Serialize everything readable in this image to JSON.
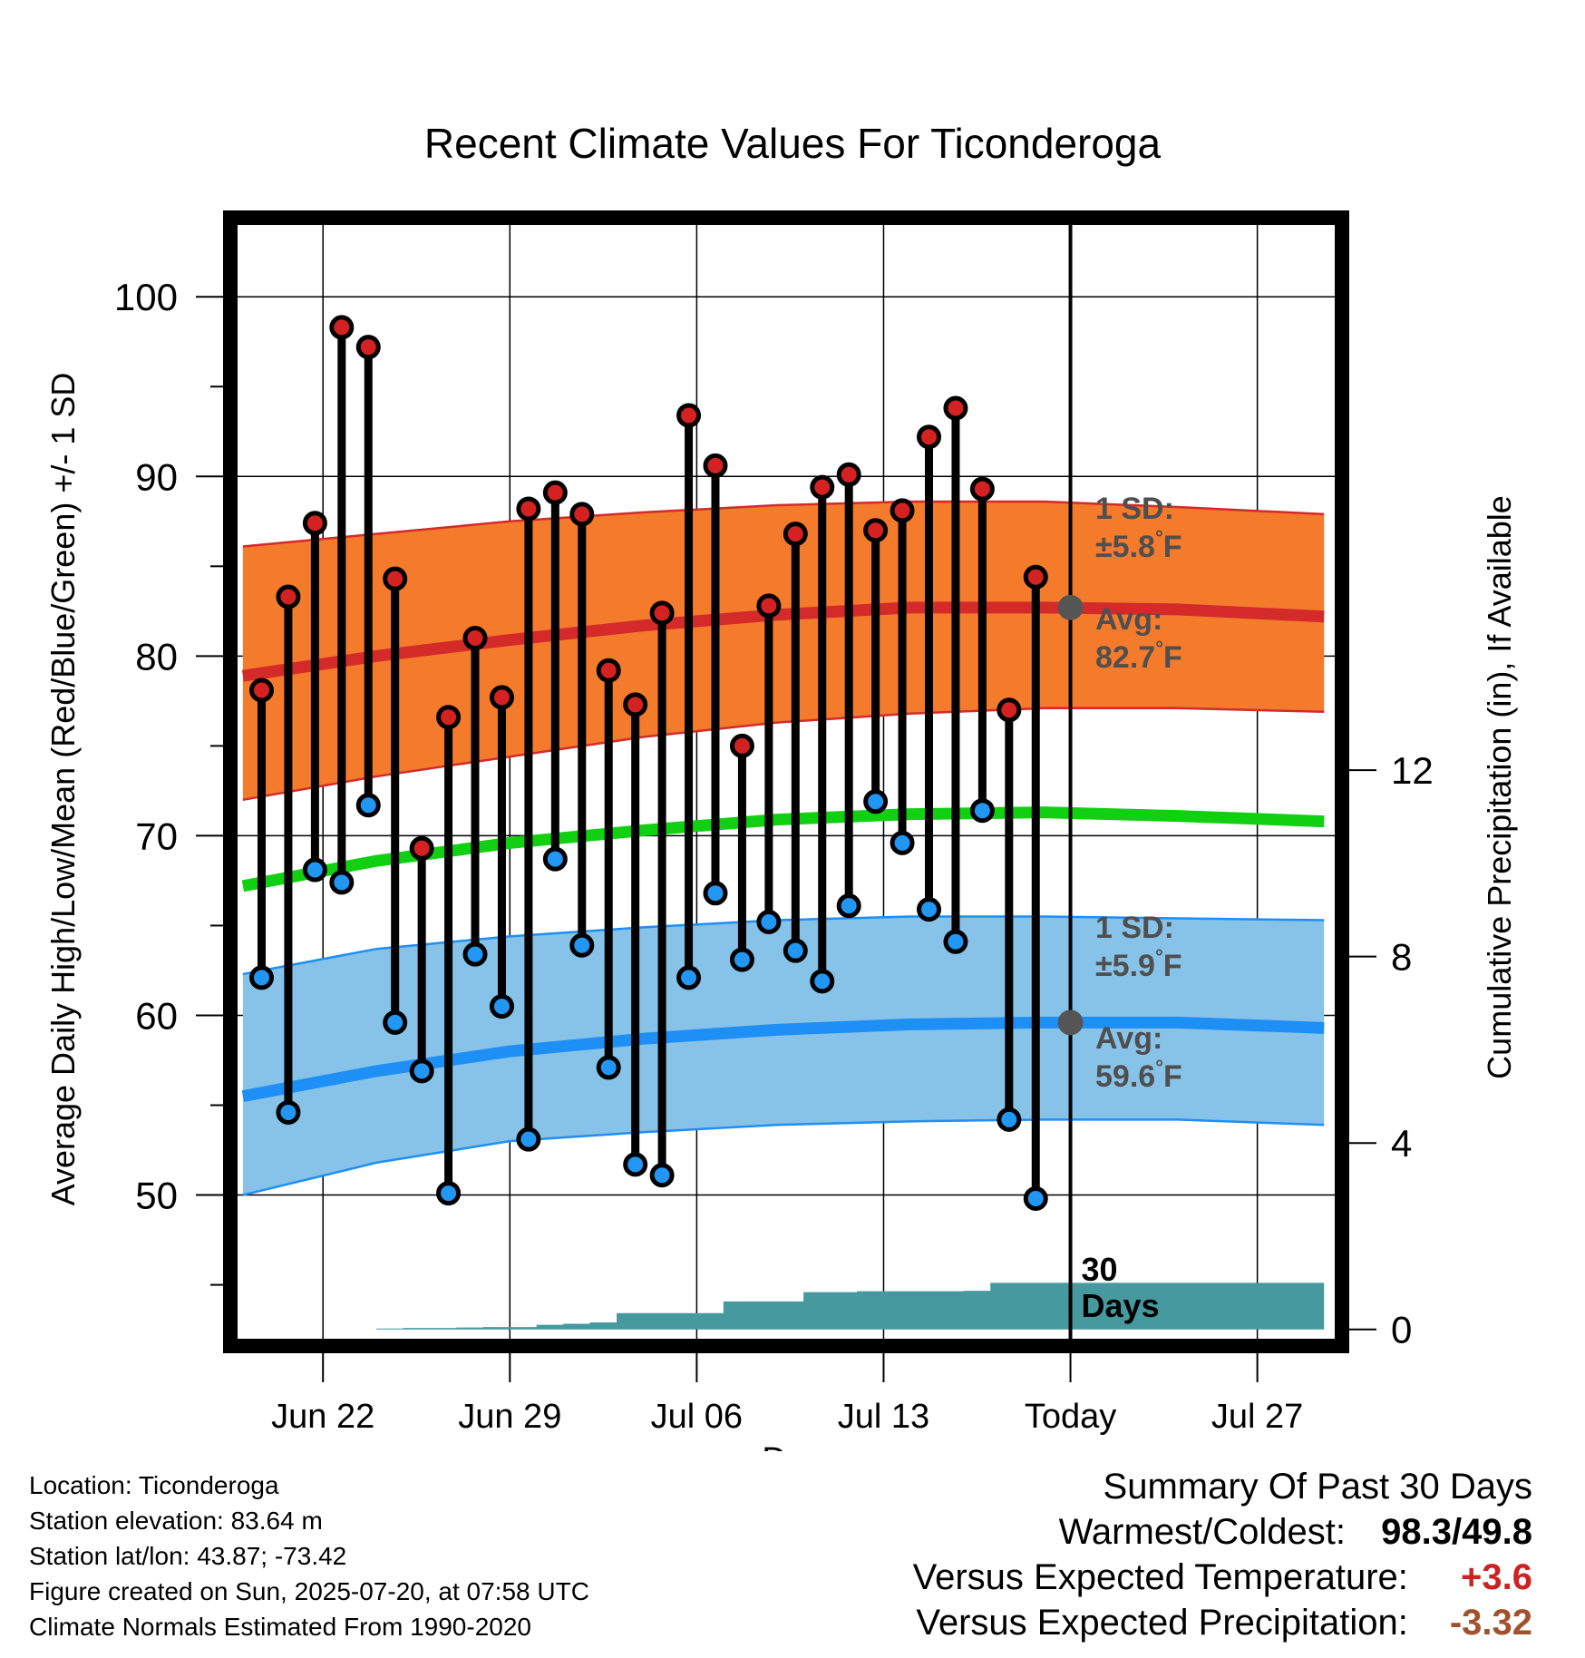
{
  "chart_data": {
    "type": "line",
    "title": "Recent Climate Values For Ticonderoga",
    "xlabel": "Day",
    "ylabel": "Average Daily High/Low/Mean (Red/Blue/Green) +/- 1 SD",
    "y2label": "Cumulative Precipitation (in), If Available",
    "x_ticks": [
      {
        "day": 3,
        "label": "Jun 22"
      },
      {
        "day": 10,
        "label": "Jun 29"
      },
      {
        "day": 17,
        "label": "Jul 06"
      },
      {
        "day": 24,
        "label": "Jul 13"
      },
      {
        "day": 31,
        "label": "Today"
      },
      {
        "day": 38,
        "label": "Jul 27"
      }
    ],
    "x_range": [
      -0.2,
      40.9
    ],
    "ylim": [
      42,
      104
    ],
    "y_ticks": [
      50,
      60,
      70,
      80,
      90,
      100
    ],
    "y2lim": [
      -0.2,
      23.7
    ],
    "y2_ticks": [
      0,
      4,
      8,
      12
    ],
    "today_day": 31,
    "today_label": [
      "30",
      "Days"
    ],
    "normal_high": {
      "x": [
        0,
        5,
        10,
        15,
        20,
        25,
        30,
        35,
        40.5
      ],
      "mean": [
        78.9,
        80.0,
        80.9,
        81.7,
        82.3,
        82.7,
        82.7,
        82.6,
        82.2
      ],
      "upper": [
        86.1,
        86.8,
        87.5,
        88.0,
        88.4,
        88.6,
        88.6,
        88.3,
        87.9
      ],
      "lower": [
        72.0,
        73.3,
        74.4,
        75.5,
        76.3,
        76.8,
        77.1,
        77.1,
        76.9
      ]
    },
    "normal_low": {
      "x": [
        0,
        5,
        10,
        15,
        20,
        25,
        30,
        35,
        40.5
      ],
      "mean": [
        55.5,
        56.9,
        58.0,
        58.7,
        59.2,
        59.5,
        59.6,
        59.6,
        59.3
      ],
      "upper": [
        62.3,
        63.7,
        64.4,
        64.9,
        65.3,
        65.5,
        65.5,
        65.4,
        65.3
      ],
      "lower": [
        50.0,
        51.8,
        53.0,
        53.5,
        53.9,
        54.1,
        54.2,
        54.2,
        53.9
      ]
    },
    "normal_mean": {
      "x": [
        0,
        5,
        10,
        15,
        20,
        25,
        30,
        35,
        40.5
      ],
      "values": [
        67.2,
        68.6,
        69.6,
        70.3,
        70.9,
        71.2,
        71.3,
        71.1,
        70.8
      ]
    },
    "observed": {
      "day": [
        0.7,
        1.7,
        2.7,
        3.7,
        4.7,
        5.7,
        6.7,
        7.7,
        8.7,
        9.7,
        10.7,
        11.7,
        12.7,
        13.7,
        14.7,
        15.7,
        16.7,
        17.7,
        18.7,
        19.7,
        20.7,
        21.7,
        22.7,
        23.7,
        24.7,
        25.7,
        26.7,
        27.7,
        28.7,
        29.7
      ],
      "high": [
        78.1,
        83.3,
        87.4,
        98.3,
        97.2,
        84.3,
        69.3,
        76.6,
        81.0,
        77.7,
        88.2,
        89.1,
        87.9,
        79.2,
        77.3,
        82.4,
        93.4,
        90.6,
        75.0,
        82.8,
        86.8,
        89.4,
        90.1,
        87.0,
        88.1,
        92.2,
        93.8,
        89.3,
        77.0,
        84.4
      ],
      "low": [
        62.1,
        54.6,
        68.1,
        67.4,
        71.7,
        59.6,
        56.9,
        50.1,
        63.4,
        60.5,
        53.1,
        68.7,
        63.9,
        57.1,
        51.7,
        51.1,
        62.1,
        66.8,
        63.1,
        65.2,
        63.6,
        61.9,
        66.1,
        71.9,
        69.6,
        65.9,
        64.1,
        71.4,
        54.2,
        49.8
      ]
    },
    "precip_cumulative": {
      "day": [
        0,
        1,
        2,
        3,
        4,
        5,
        6,
        7,
        8,
        9,
        10,
        11,
        12,
        13,
        14,
        15,
        16,
        17,
        18,
        19,
        20,
        21,
        22,
        23,
        24,
        25,
        26,
        27,
        28,
        29,
        30,
        31,
        32,
        33,
        34,
        35,
        36,
        37,
        38,
        39,
        40.5
      ],
      "values": [
        0,
        0,
        0,
        0,
        0,
        0.02,
        0.03,
        0.03,
        0.04,
        0.05,
        0.05,
        0.1,
        0.12,
        0.15,
        0.35,
        0.35,
        0.35,
        0.35,
        0.6,
        0.6,
        0.6,
        0.8,
        0.8,
        0.82,
        0.82,
        0.82,
        0.82,
        0.83,
        1.0,
        1.0,
        1.0,
        1.0,
        1.0,
        1.0,
        1.0,
        1.0,
        1.0,
        1.0,
        1.0,
        1.0,
        1.0
      ]
    },
    "annotations": {
      "high_sd": {
        "lines": [
          "1 SD:",
          "±5.8°F"
        ]
      },
      "high_avg": {
        "lines": [
          "Avg:",
          "82.7°F"
        ],
        "value": 82.7
      },
      "low_sd": {
        "lines": [
          "1 SD:",
          "±5.9°F"
        ]
      },
      "low_avg": {
        "lines": [
          "Avg:",
          "59.6°F"
        ],
        "value": 59.6
      }
    },
    "grid": true,
    "colors": {
      "high_band": "#f47a2c",
      "high_line": "#d42a2a",
      "low_band": "#87c2e8",
      "low_line": "#1e8ff5",
      "mean_line": "#11d011",
      "precip": "#45999f",
      "high_marker": "#d42222",
      "low_marker": "#2196f3",
      "annotation": "#4f4f4f"
    }
  },
  "info": {
    "location": "Location: Ticonderoga",
    "elevation": "Station elevation: 83.64 m",
    "latlon": "Station lat/lon: 43.87; -73.42",
    "created": "Figure created on Sun, 2025-07-20, at 07:58 UTC",
    "normals": "Climate Normals Estimated From 1990-2020"
  },
  "summary": {
    "title": "Summary Of Past 30 Days",
    "warm_cold_label": "Warmest/Coldest:",
    "warmest": "98.3",
    "slash": "/",
    "coldest": "49.8",
    "temp_label": "Versus Expected Temperature:",
    "temp_value": "+3.6",
    "temp_color": "#cc2222",
    "precip_label": "Versus Expected Precipitation:",
    "precip_value": "-3.32",
    "precip_color": "#a0522d"
  }
}
